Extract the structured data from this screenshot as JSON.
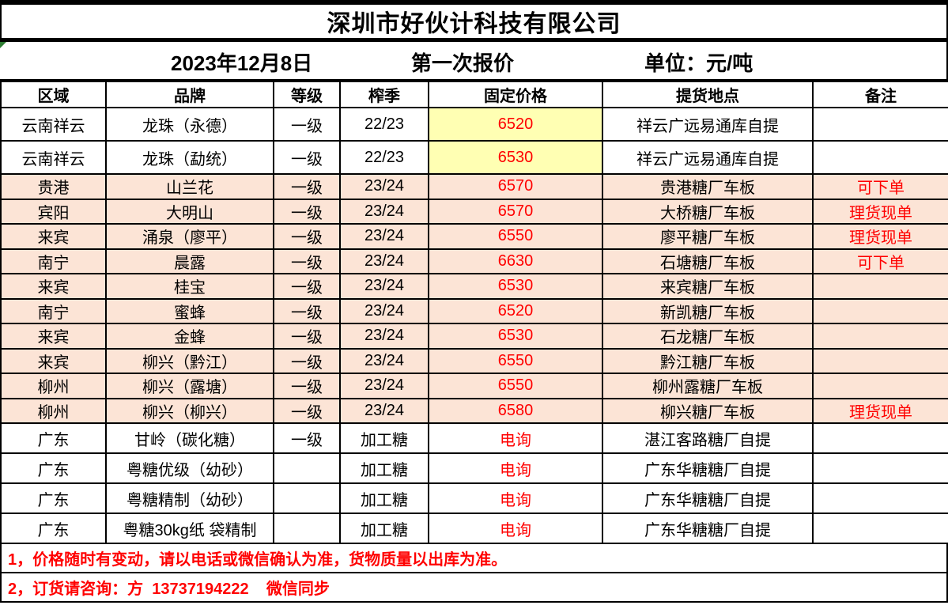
{
  "company": "深圳市好伙计科技有限公司",
  "meta": {
    "date": "2023年12月8日",
    "round": "第一次报价",
    "unit": "单位：元/吨"
  },
  "table": {
    "headers": [
      "区域",
      "品牌",
      "等级",
      "榨季",
      "固定价格",
      "提货地点",
      "备注"
    ],
    "rows": [
      {
        "region": "云南祥云",
        "brand": "龙珠（永德）",
        "grade": "一级",
        "season": "22/23",
        "price": "6520",
        "pickup": "祥云广远易通库自提",
        "remark": "",
        "band": "white",
        "price_bg": "yellow"
      },
      {
        "region": "云南祥云",
        "brand": "龙珠（勐统）",
        "grade": "一级",
        "season": "22/23",
        "price": "6530",
        "pickup": "祥云广远易通库自提",
        "remark": "",
        "band": "white",
        "price_bg": "yellow"
      },
      {
        "region": "贵港",
        "brand": "山兰花",
        "grade": "一级",
        "season": "23/24",
        "price": "6570",
        "pickup": "贵港糖厂车板",
        "remark": "可下单",
        "band": "peach",
        "price_bg": ""
      },
      {
        "region": "宾阳",
        "brand": "大明山",
        "grade": "一级",
        "season": "23/24",
        "price": "6570",
        "pickup": "大桥糖厂车板",
        "remark": "理货现单",
        "band": "peach",
        "price_bg": ""
      },
      {
        "region": "来宾",
        "brand": "涌泉（廖平）",
        "grade": "一级",
        "season": "23/24",
        "price": "6550",
        "pickup": "廖平糖厂车板",
        "remark": "理货现单",
        "band": "peach",
        "price_bg": ""
      },
      {
        "region": "南宁",
        "brand": "晨露",
        "grade": "一级",
        "season": "23/24",
        "price": "6630",
        "pickup": "石塘糖厂车板",
        "remark": "可下单",
        "band": "peach",
        "price_bg": ""
      },
      {
        "region": "来宾",
        "brand": "桂宝",
        "grade": "一级",
        "season": "23/24",
        "price": "6530",
        "pickup": "来宾糖厂车板",
        "remark": "",
        "band": "peach",
        "price_bg": ""
      },
      {
        "region": "南宁",
        "brand": "蜜蜂",
        "grade": "一级",
        "season": "23/24",
        "price": "6520",
        "pickup": "新凯糖厂车板",
        "remark": "",
        "band": "peach",
        "price_bg": ""
      },
      {
        "region": "来宾",
        "brand": "金蜂",
        "grade": "一级",
        "season": "23/24",
        "price": "6530",
        "pickup": "石龙糖厂车板",
        "remark": "",
        "band": "peach",
        "price_bg": ""
      },
      {
        "region": "来宾",
        "brand": "柳兴（黔江）",
        "grade": "一级",
        "season": "23/24",
        "price": "6550",
        "pickup": "黔江糖厂车板",
        "remark": "",
        "band": "peach",
        "price_bg": ""
      },
      {
        "region": "柳州",
        "brand": "柳兴（露塘）",
        "grade": "一级",
        "season": "23/24",
        "price": "6550",
        "pickup": "柳州露糖厂车板",
        "remark": "",
        "band": "peach",
        "price_bg": ""
      },
      {
        "region": "柳州",
        "brand": "柳兴（柳兴）",
        "grade": "一级",
        "season": "23/24",
        "price": "6580",
        "pickup": "柳兴糖厂车板",
        "remark": "理货现单",
        "band": "peach",
        "price_bg": ""
      },
      {
        "region": "广东",
        "brand": "甘岭（碳化糖）",
        "grade": "一级",
        "season": "加工糖",
        "price": "电询",
        "pickup": "湛江客路糖厂自提",
        "remark": "",
        "band": "white",
        "price_bg": ""
      },
      {
        "region": "广东",
        "brand": "粤糖优级（幼砂）",
        "grade": "",
        "season": "加工糖",
        "price": "电询",
        "pickup": "广东华糖糖厂自提",
        "remark": "",
        "band": "white",
        "price_bg": ""
      },
      {
        "region": "广东",
        "brand": "粤糖精制（幼砂）",
        "grade": "",
        "season": "加工糖",
        "price": "电询",
        "pickup": "广东华糖糖厂自提",
        "remark": "",
        "band": "white",
        "price_bg": ""
      },
      {
        "region": "广东",
        "brand": "粤糖30kg纸 袋精制",
        "grade": "",
        "season": "加工糖",
        "price": "电询",
        "pickup": "广东华糖糖厂自提",
        "remark": "",
        "band": "white",
        "price_bg": ""
      }
    ]
  },
  "footer": {
    "note1": "1，价格随时有变动，请以电话或微信确认为准，货物质量以出库为准。",
    "note2": "2，订货请咨询：方  13737194222    微信同步"
  },
  "colors": {
    "price_text_red": "#FF0000",
    "remark_text_red": "#FF0000",
    "note_text_red": "#FF0000",
    "highlight_yellow": "#FFFFB3",
    "band_peach": "#FCE4D6",
    "grid_black": "#000000",
    "error_indicator_green": "#2E7D32"
  }
}
